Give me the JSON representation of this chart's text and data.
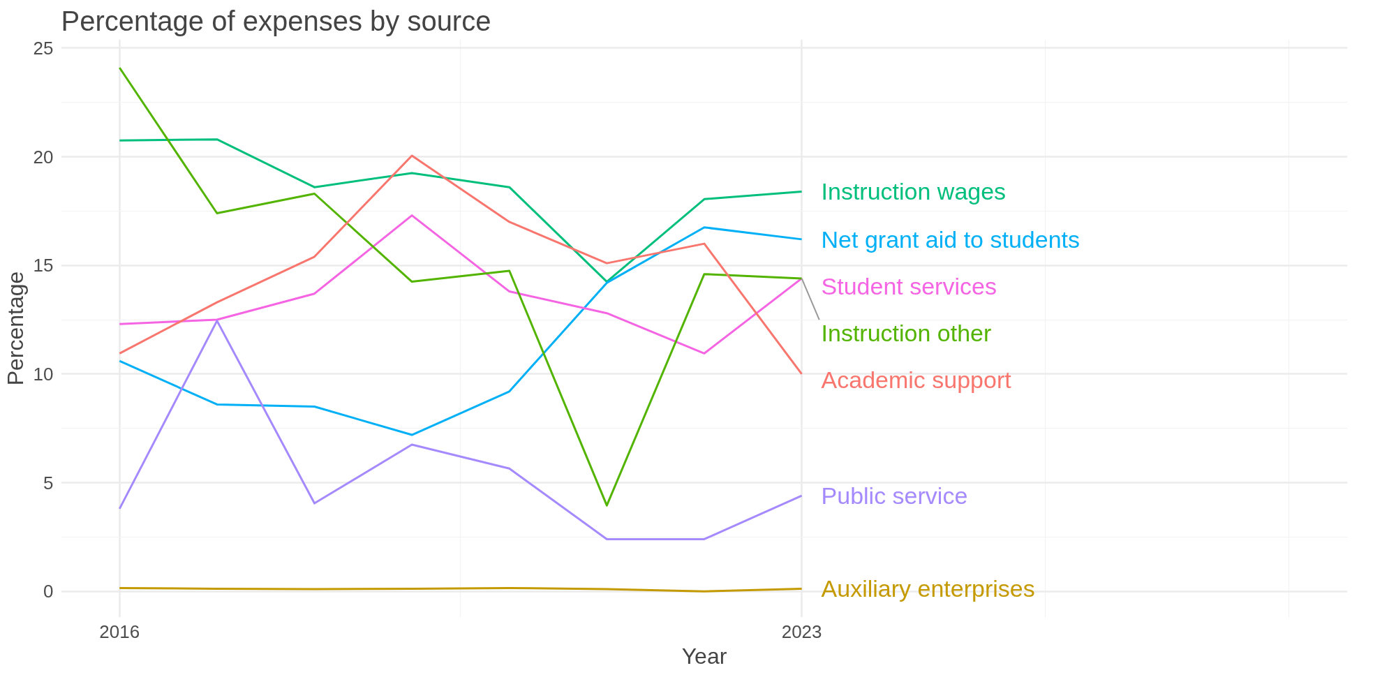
{
  "chart_data": {
    "type": "line",
    "title": "Percentage of expenses by source",
    "xlabel": "Year",
    "ylabel": "Percentage",
    "x": [
      2016,
      2017,
      2018,
      2019,
      2020,
      2021,
      2022,
      2023
    ],
    "xlim": [
      2015.4,
      2028.6
    ],
    "ylim": [
      -1.2,
      25.4
    ],
    "xticks": [
      2016,
      {
        "value": 2019.5,
        "label": null
      },
      2023,
      {
        "value": 2025.5,
        "label": null
      },
      {
        "value": 2028,
        "label": null
      }
    ],
    "yticks": [
      0,
      {
        "value": 2.5,
        "label": null
      },
      5,
      {
        "value": 7.5,
        "label": null
      },
      10,
      {
        "value": 12.5,
        "label": null
      },
      15,
      {
        "value": 17.5,
        "label": null
      },
      20,
      {
        "value": 22.5,
        "label": null
      },
      25
    ],
    "grid": true,
    "series": [
      {
        "name": "Instruction wages",
        "color": "#00bf7d",
        "values": [
          20.75,
          20.8,
          18.6,
          19.25,
          18.6,
          14.25,
          18.05,
          18.4
        ]
      },
      {
        "name": "Net grant aid to students",
        "color": "#00b0f6",
        "values": [
          10.6,
          8.6,
          8.5,
          7.2,
          9.2,
          14.2,
          16.75,
          16.2
        ]
      },
      {
        "name": "Student services",
        "color": "#f564e3",
        "values": [
          12.3,
          12.5,
          13.7,
          17.3,
          13.8,
          12.8,
          10.95,
          14.4
        ]
      },
      {
        "name": "Instruction other",
        "color": "#53b400",
        "values": [
          24.1,
          17.4,
          18.3,
          14.25,
          14.75,
          3.95,
          14.6,
          14.4
        ]
      },
      {
        "name": "Academic support",
        "color": "#f8766d",
        "values": [
          10.95,
          13.3,
          15.4,
          20.05,
          17.0,
          15.1,
          16.0,
          10.0
        ]
      },
      {
        "name": "Public service",
        "color": "#a58aff",
        "values": [
          3.8,
          12.45,
          4.05,
          6.75,
          5.65,
          2.4,
          2.4,
          4.4
        ]
      },
      {
        "name": "Auxiliary enterprises",
        "color": "#c49a00",
        "values": [
          0.15,
          0.12,
          0.1,
          0.12,
          0.15,
          0.1,
          0.0,
          0.12
        ]
      }
    ]
  }
}
